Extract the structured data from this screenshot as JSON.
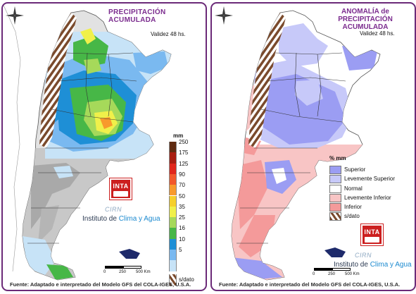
{
  "left_panel": {
    "title": "PRECIPITACIÓN ACUMULADA",
    "validity": "Validez 48 hs.",
    "legend": {
      "unit": "mm",
      "items": [
        {
          "label": "250",
          "color": "#5e2a10"
        },
        {
          "label": "175",
          "color": "#a81d10"
        },
        {
          "label": "125",
          "color": "#e0261b"
        },
        {
          "label": "90",
          "color": "#f2582b"
        },
        {
          "label": "70",
          "color": "#f89a2c"
        },
        {
          "label": "50",
          "color": "#f6cf2a"
        },
        {
          "label": "35",
          "color": "#f0f04a"
        },
        {
          "label": "25",
          "color": "#a6d95a"
        },
        {
          "label": "16",
          "color": "#47b747"
        },
        {
          "label": "10",
          "color": "#1e8fd6"
        },
        {
          "label": "5",
          "color": "#7ab9f0"
        },
        {
          "label": "",
          "color": "#c7e3f7"
        }
      ],
      "no_data_label": "s/dato"
    },
    "logo_text": "INTA",
    "cirn_text": "CIRN",
    "institute_prefix": "Instituto de ",
    "institute_highlight": "Clima y Agua",
    "scale": {
      "labels": [
        "0",
        "250",
        "500 Km"
      ]
    },
    "footer": "Fuente: Adaptado e interpretado del Modelo GFS del COLA-IGES, U.S.A."
  },
  "right_panel": {
    "title_line1": "ANOMALÍA de",
    "title_line2": "PRECIPITACIÓN ACUMULADA",
    "validity": "Validez 48 hs.",
    "legend": {
      "unit": "% mm",
      "items": [
        {
          "label": "Superior",
          "color": "#9b9df3"
        },
        {
          "label": "Levemente Superior",
          "color": "#c7c9f9"
        },
        {
          "label": "Normal",
          "color": "#ffffff"
        },
        {
          "label": "Levemente Inferior",
          "color": "#f8c5c5"
        },
        {
          "label": "Inferior",
          "color": "#f49a9a"
        }
      ],
      "no_data_label": "s/dato"
    },
    "logo_text": "INTA",
    "cirn_text": "CIRN",
    "institute_prefix": "Instituto de ",
    "institute_highlight": "Clima y Agua",
    "scale": {
      "labels": [
        "0",
        "250",
        "500 Km"
      ]
    },
    "footer": "Fuente: Adaptado e interpretado del Modelo GFS del COLA-IGES, U.S.A."
  },
  "colors": {
    "frame": "#6b2a78",
    "title": "#7b2c8e",
    "no_data_hatch": "#7a4a2c"
  }
}
